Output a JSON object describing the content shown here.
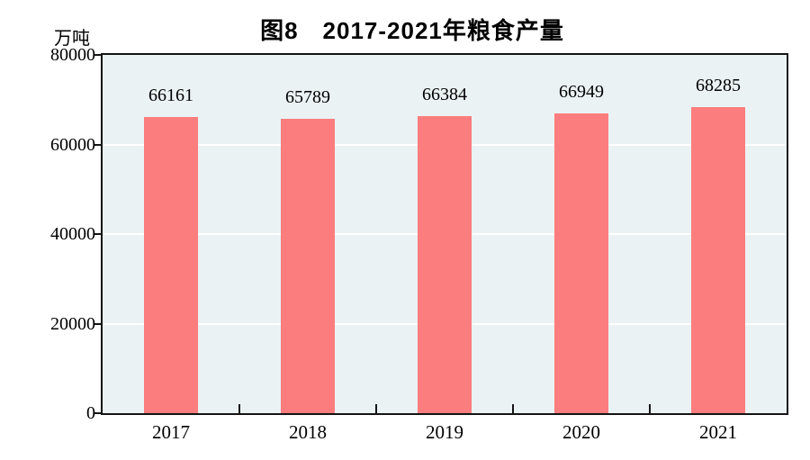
{
  "title": "图8　2017-2021年粮食产量",
  "unit_label": "万吨",
  "colors": {
    "bar": "#FC7D7D",
    "plot_background": "#EBF2F4",
    "gridline": "#FFFFFF",
    "axis": "#141414",
    "page_background": "#FFFFFF",
    "text": "#000000"
  },
  "chart_data": {
    "type": "bar",
    "title": "图8　2017-2021年粮食产量",
    "categories": [
      "2017",
      "2018",
      "2019",
      "2020",
      "2021"
    ],
    "values": [
      66161,
      65789,
      66384,
      66949,
      68285
    ],
    "value_labels": [
      "66161",
      "65789",
      "66384",
      "66949",
      "68285"
    ],
    "xlabel": "",
    "ylabel": "万吨",
    "ylim": [
      0,
      80000
    ],
    "yticks": [
      0,
      20000,
      40000,
      60000,
      80000
    ],
    "ytick_labels": [
      "0",
      "20000",
      "40000",
      "60000",
      "80000"
    ],
    "grid": true,
    "legend_position": "none"
  }
}
